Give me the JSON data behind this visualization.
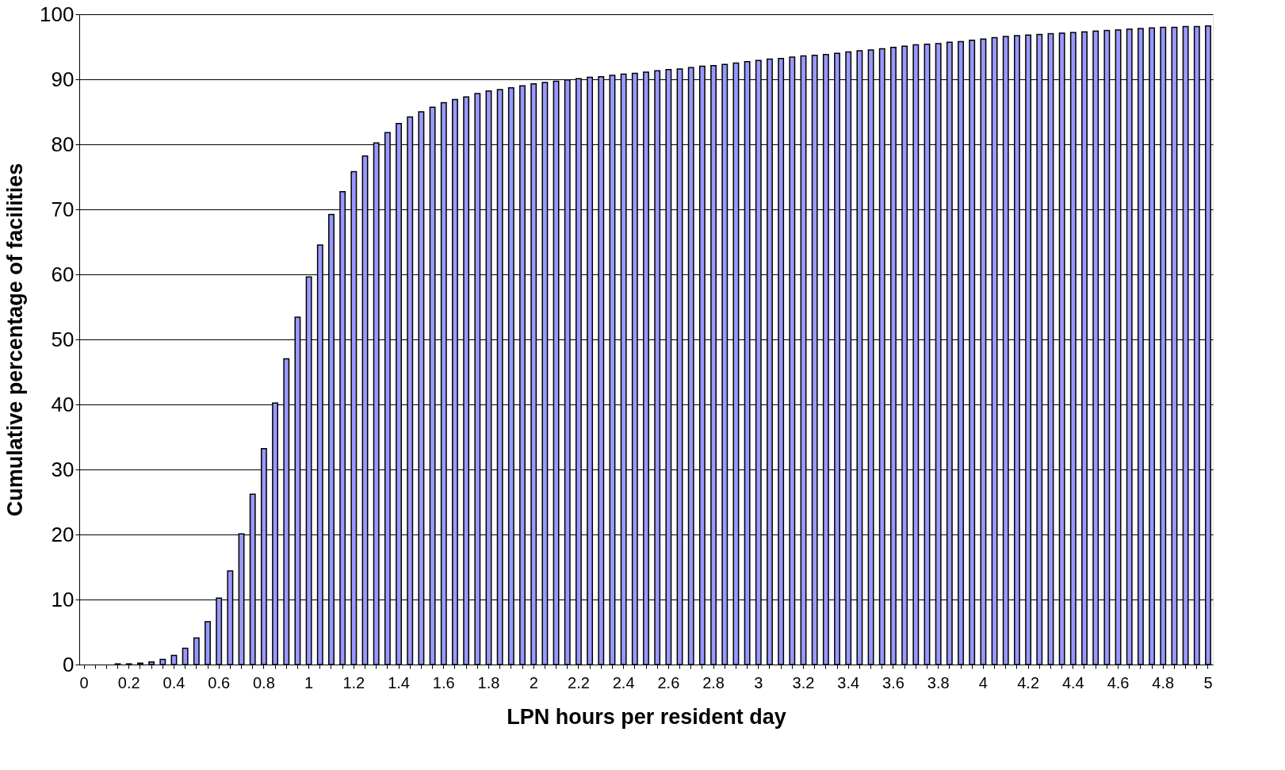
{
  "chart_data": {
    "type": "bar",
    "xlabel": "LPN hours per resident day",
    "ylabel": "Cumulative percentage of facilities",
    "categories": [
      "0",
      null,
      null,
      null,
      "0.2",
      null,
      null,
      null,
      "0.4",
      null,
      null,
      null,
      "0.6",
      null,
      null,
      null,
      "0.8",
      null,
      null,
      null,
      "1",
      null,
      null,
      null,
      "1.2",
      null,
      null,
      null,
      "1.4",
      null,
      null,
      null,
      "1.6",
      null,
      null,
      null,
      "1.8",
      null,
      null,
      null,
      "2",
      null,
      null,
      null,
      "2.2",
      null,
      null,
      null,
      "2.4",
      null,
      null,
      null,
      "2.6",
      null,
      null,
      null,
      "2.8",
      null,
      null,
      null,
      "3",
      null,
      null,
      null,
      "3.2",
      null,
      null,
      null,
      "3.4",
      null,
      null,
      null,
      "3.6",
      null,
      null,
      null,
      "3.8",
      null,
      null,
      null,
      "4",
      null,
      null,
      null,
      "4.2",
      null,
      null,
      null,
      "4.4",
      null,
      null,
      null,
      "4.6",
      null,
      null,
      null,
      "4.8",
      null,
      null,
      null,
      "5"
    ],
    "values": [
      0,
      0,
      0,
      0.1,
      0.1,
      0.2,
      0.4,
      0.8,
      1.4,
      2.5,
      4.1,
      6.6,
      10.2,
      14.4,
      20.1,
      26.2,
      33.2,
      40.2,
      47.0,
      53.4,
      59.6,
      64.5,
      69.2,
      72.7,
      75.8,
      78.2,
      80.2,
      81.8,
      83.2,
      84.2,
      85.0,
      85.7,
      86.4,
      86.9,
      87.3,
      87.8,
      88.2,
      88.4,
      88.7,
      89.0,
      89.3,
      89.5,
      89.7,
      89.9,
      90.1,
      90.3,
      90.4,
      90.6,
      90.8,
      90.9,
      91.1,
      91.3,
      91.5,
      91.6,
      91.8,
      92.0,
      92.1,
      92.3,
      92.5,
      92.7,
      92.9,
      93.1,
      93.2,
      93.4,
      93.6,
      93.7,
      93.8,
      94.0,
      94.2,
      94.4,
      94.5,
      94.7,
      94.9,
      95.1,
      95.3,
      95.4,
      95.5,
      95.7,
      95.8,
      96.0,
      96.2,
      96.4,
      96.6,
      96.7,
      96.8,
      96.9,
      97.0,
      97.1,
      97.2,
      97.3,
      97.4,
      97.5,
      97.6,
      97.7,
      97.8,
      97.9,
      98.0,
      98.0,
      98.1,
      98.1,
      98.2
    ],
    "color": "#9999ff",
    "ylim": [
      0,
      100
    ],
    "yticks": [
      0,
      10,
      20,
      30,
      40,
      50,
      60,
      70,
      80,
      90,
      100
    ],
    "grid": "y"
  }
}
